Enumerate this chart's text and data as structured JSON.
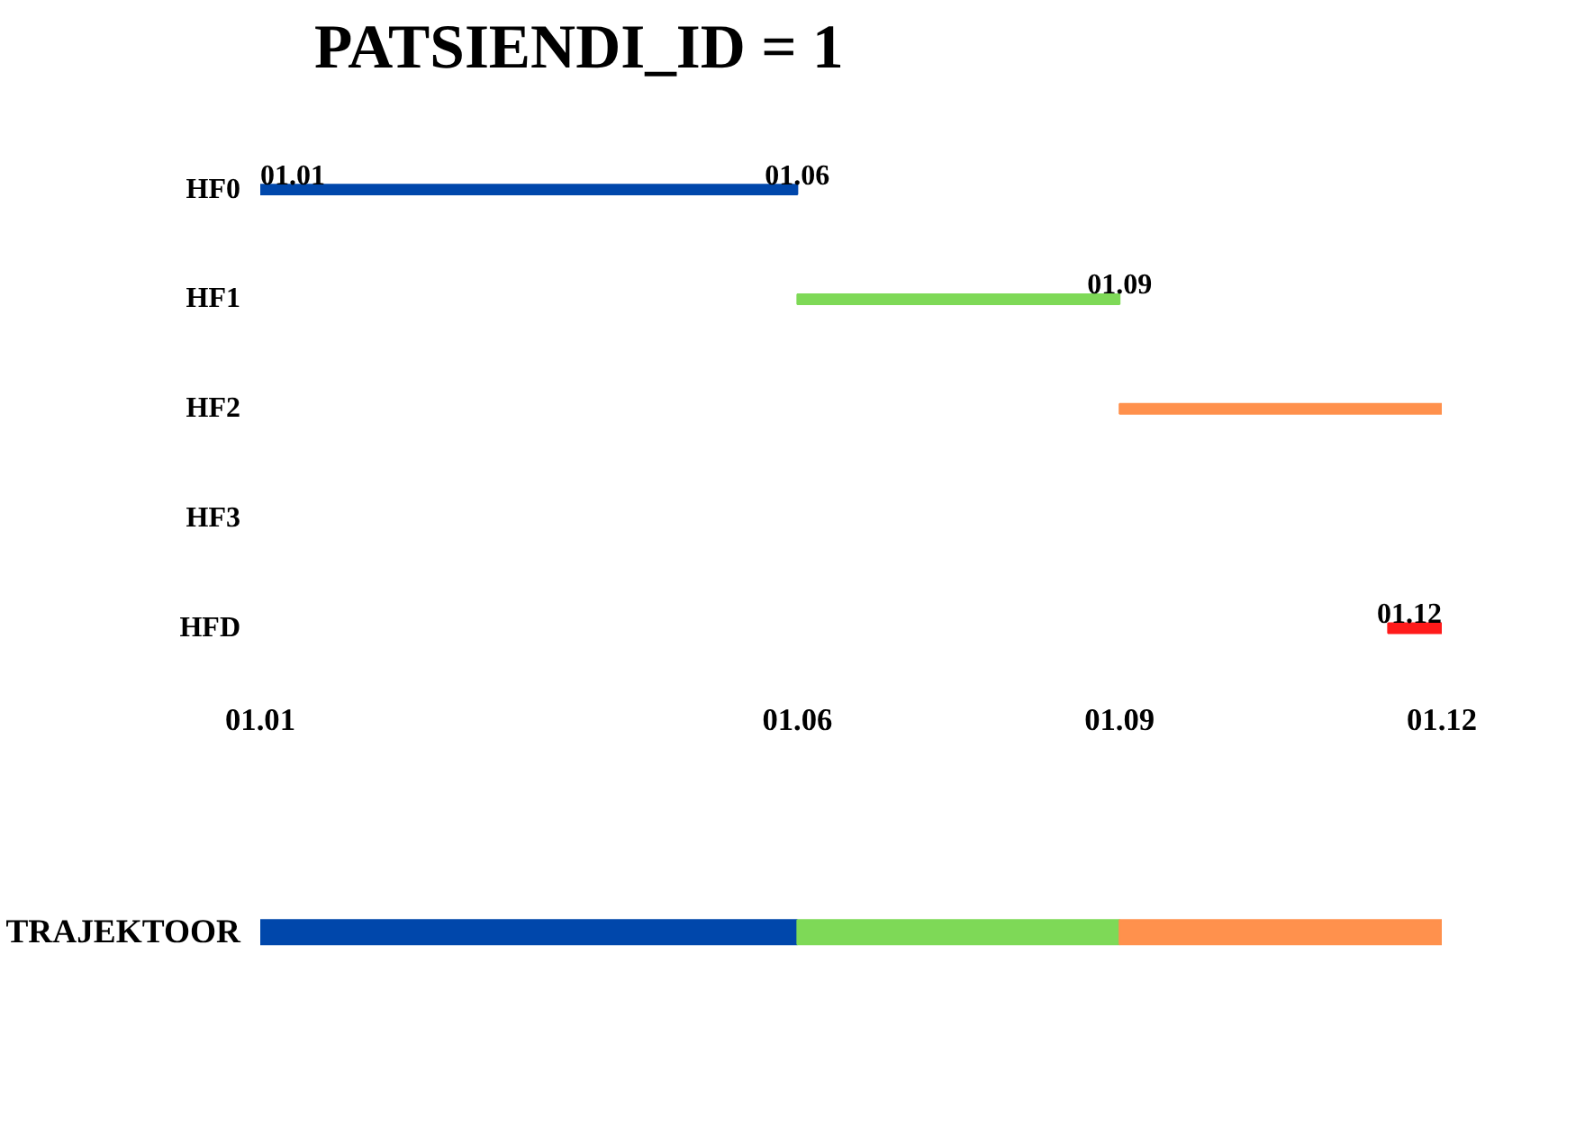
{
  "chart_data": [
    {
      "type": "bar",
      "orientation": "horizontal",
      "title": "PATSIENDI_ID = 1",
      "categories": [
        "HF0",
        "HF1",
        "HF2",
        "HF3",
        "HFD"
      ],
      "base": [
        1.01,
        1.06,
        1.09,
        null,
        1.115
      ],
      "values": [
        0.05,
        0.03,
        0.03,
        null,
        0.005
      ],
      "colors": [
        "#0047ab",
        "#7ed957",
        "#ff914d",
        "#000000",
        "#ff1a1a"
      ],
      "xlim": [
        1.01,
        1.12
      ],
      "tick_labels": "y",
      "grid": false,
      "annotations": [
        {
          "text": "01.01",
          "x": 1.01,
          "y": "HF0"
        },
        {
          "text": "01.06",
          "x": 1.06,
          "y": "HF0"
        },
        {
          "text": "01.09",
          "x": 1.09,
          "y": "HF1"
        },
        {
          "text": "01.12",
          "x": 1.12,
          "y": "HFD"
        }
      ]
    },
    {
      "type": "bar",
      "orientation": "horizontal",
      "categories": [
        "TRAJEKTOOR"
      ],
      "series": [
        {
          "color": "#0047ab",
          "base": [
            1.01
          ],
          "values": [
            0.05
          ]
        },
        {
          "color": "#7ed957",
          "base": [
            1.06
          ],
          "values": [
            0.03
          ]
        },
        {
          "color": "#ff914d",
          "base": [
            1.09
          ],
          "values": [
            0.03
          ]
        }
      ],
      "xlim": [
        1.01,
        1.12
      ],
      "xticks": [
        {
          "value": 1.01,
          "label": "01.01"
        },
        {
          "value": 1.06,
          "label": "01.06"
        },
        {
          "value": 1.09,
          "label": "01.09"
        },
        {
          "value": 1.12,
          "label": "01.12"
        }
      ],
      "grid": false
    }
  ]
}
